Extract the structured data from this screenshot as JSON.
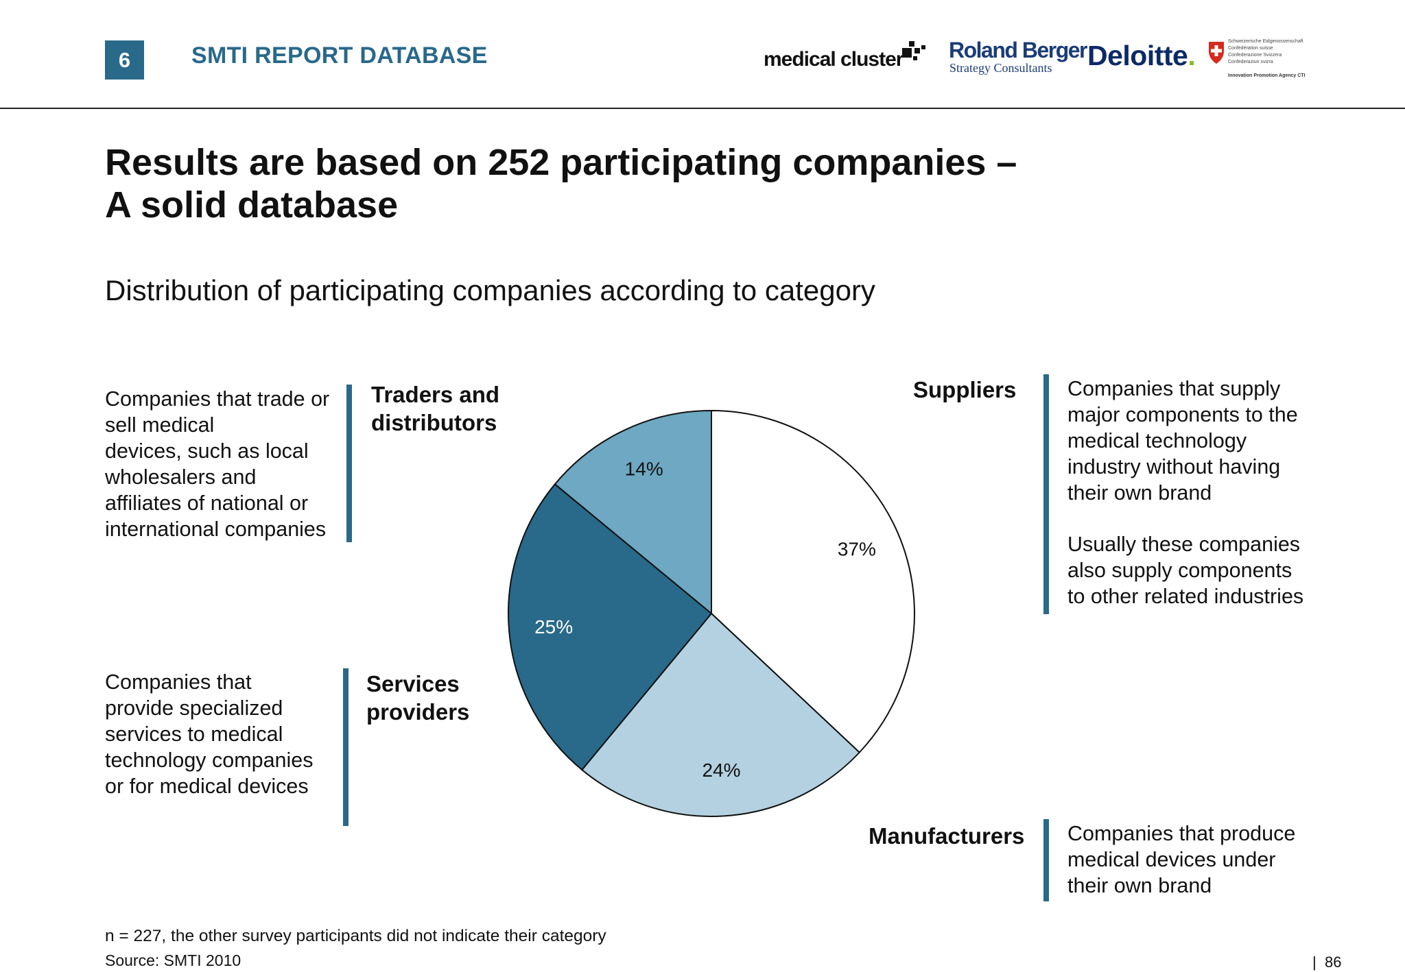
{
  "header": {
    "section_number": "6",
    "section_title": "SMTI REPORT DATABASE",
    "logos": {
      "medical_cluster": "medical cluster",
      "roland_berger_line1": "Roland Berger",
      "roland_berger_line2": "Strategy Consultants",
      "deloitte": "Deloitte",
      "deloitte_dot": ".",
      "swiss_lines": [
        "Schweizerische Eidgenossenschaft",
        "Confédération suisse",
        "Confederazione Svizzera",
        "Confederaziun svizra"
      ],
      "swiss_agency": "Innovation Promotion Agency CTI"
    }
  },
  "headline": {
    "line1": "Results are based on 252 participating companies –",
    "line2": "A solid database"
  },
  "subtitle": "Distribution of participating companies according to category",
  "categories": {
    "traders": {
      "name_line1": "Traders and",
      "name_line2": "distributors",
      "description": [
        "Companies that trade or",
        "sell medical",
        "devices, such as local",
        "wholesalers and",
        "affiliates of national or",
        "international companies"
      ]
    },
    "services": {
      "name_line1": "Services",
      "name_line2": "providers",
      "description": [
        "Companies that",
        "provide specialized",
        "services to medical",
        "technology companies",
        "or for medical devices"
      ]
    },
    "suppliers": {
      "name": "Suppliers",
      "description": [
        "Companies that supply",
        "major components to the",
        "medical technology",
        "industry without having",
        "their own brand"
      ],
      "description2": [
        "Usually these companies",
        "also supply components",
        "to other related industries"
      ]
    },
    "manufacturers": {
      "name": "Manufacturers",
      "description": [
        "Companies that produce",
        "medical devices under",
        "their own brand"
      ]
    }
  },
  "chart_data": {
    "type": "pie",
    "start": "12 o'clock, clockwise",
    "categories": [
      "Suppliers",
      "Manufacturers",
      "Services providers",
      "Traders and distributors"
    ],
    "values": [
      37,
      24,
      25,
      14
    ],
    "labels": [
      "37%",
      "24%",
      "25%",
      "14%"
    ],
    "colors": [
      "#ffffff",
      "#b3d1e0",
      "#29698a",
      "#6ea8c2"
    ],
    "label_colors": [
      "#111111",
      "#111111",
      "#ffffff",
      "#111111"
    ],
    "outline_color": "#111111"
  },
  "footer": {
    "note": "n = 227, the other survey participants did not indicate their category",
    "source": "Source:  SMTI 2010",
    "page_separator": "|",
    "page_number": "86"
  }
}
